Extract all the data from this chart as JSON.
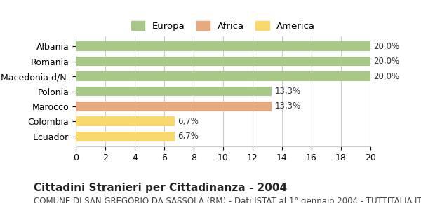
{
  "categories": [
    "Ecuador",
    "Colombia",
    "Marocco",
    "Polonia",
    "Macedonia d/N.",
    "Romania",
    "Albania"
  ],
  "values": [
    6.7,
    6.7,
    13.3,
    13.3,
    20.0,
    20.0,
    20.0
  ],
  "bar_colors": [
    "#f9d96e",
    "#f9d96e",
    "#e8a97e",
    "#a8c888",
    "#a8c888",
    "#a8c888",
    "#a8c888"
  ],
  "labels": [
    "6,7%",
    "6,7%",
    "13,3%",
    "13,3%",
    "20,0%",
    "20,0%",
    "20,0%"
  ],
  "legend": [
    {
      "label": "Europa",
      "color": "#a8c888"
    },
    {
      "label": "Africa",
      "color": "#e8a97e"
    },
    {
      "label": "America",
      "color": "#f9d96e"
    }
  ],
  "xlim": [
    0,
    20
  ],
  "xticks": [
    0,
    2,
    4,
    6,
    8,
    10,
    12,
    14,
    16,
    18,
    20
  ],
  "title": "Cittadini Stranieri per Cittadinanza - 2004",
  "subtitle": "COMUNE DI SAN GREGORIO DA SASSOLA (RM) - Dati ISTAT al 1° gennaio 2004 - TUTTITALIA.IT",
  "background_color": "#ffffff",
  "grid_color": "#cccccc",
  "bar_edge_color": "none",
  "label_fontsize": 8.5,
  "title_fontsize": 11,
  "subtitle_fontsize": 8.5,
  "ytick_fontsize": 9,
  "xtick_fontsize": 9
}
